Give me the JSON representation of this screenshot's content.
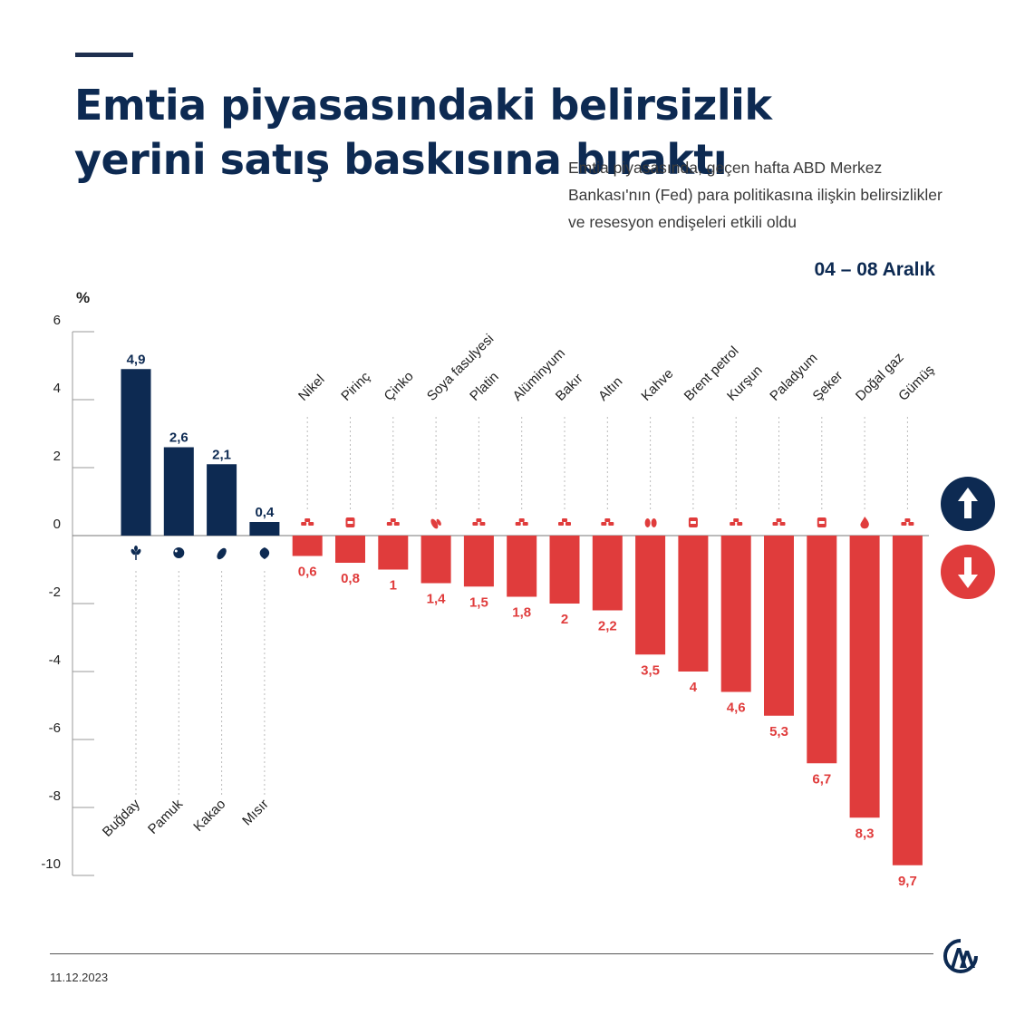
{
  "header": {
    "title": "Emtia piyasasındaki belirsizlik yerini satış baskısına bıraktı",
    "subtitle": "Emtia piyasasında, geçen hafta ABD Merkez Bankası'nın (Fed) para politikasına ilişkin belirsizlikler ve resesyon endişeleri etkili oldu",
    "date_range": "04 – 08 Aralık"
  },
  "colors": {
    "positive": "#0d2a52",
    "negative": "#e03c3c",
    "axis": "#999999",
    "guide": "#bbbbbb"
  },
  "chart_data": {
    "type": "bar",
    "yunit": "%",
    "ylim": [
      -10,
      6
    ],
    "yticks": [
      6,
      4,
      2,
      0,
      -2,
      -4,
      -6,
      -8,
      -10
    ],
    "categories": [
      "Buğday",
      "Pamuk",
      "Kakao",
      "Mısır",
      "Nikel",
      "Pirinç",
      "Çinko",
      "Soya fasulyesi",
      "Platin",
      "Alüminyum",
      "Bakır",
      "Altın",
      "Kahve",
      "Brent petrol",
      "Kurşun",
      "Paladyum",
      "Şeker",
      "Doğal gaz",
      "Gümüş"
    ],
    "values": [
      4.9,
      2.6,
      2.1,
      0.4,
      -0.6,
      -0.8,
      -1,
      -1.4,
      -1.5,
      -1.8,
      -2,
      -2.2,
      -3.5,
      -4,
      -4.6,
      -5.3,
      -6.7,
      -8.3,
      -9.7
    ],
    "value_labels": [
      "4,9",
      "2,6",
      "2,1",
      "0,4",
      "0,6",
      "0,8",
      "1",
      "1,4",
      "1,5",
      "1,8",
      "2",
      "2,2",
      "3,5",
      "4",
      "4,6",
      "5,3",
      "6,7",
      "8,3",
      "9,7"
    ],
    "icons": [
      "wheat-icon",
      "cotton-icon",
      "cocoa-icon",
      "corn-icon",
      "metal-bars-icon",
      "rice-sack-icon",
      "metal-bars-icon",
      "soybean-icon",
      "metal-bars-icon",
      "metal-bars-icon",
      "metal-bars-icon",
      "metal-bars-icon",
      "coffee-beans-icon",
      "oil-barrel-icon",
      "metal-bars-icon",
      "metal-bars-icon",
      "sugar-icon",
      "flame-icon",
      "metal-bars-icon"
    ],
    "legend": [
      "up-arrow-icon",
      "down-arrow-icon"
    ]
  },
  "footer": {
    "date": "11.12.2023"
  }
}
